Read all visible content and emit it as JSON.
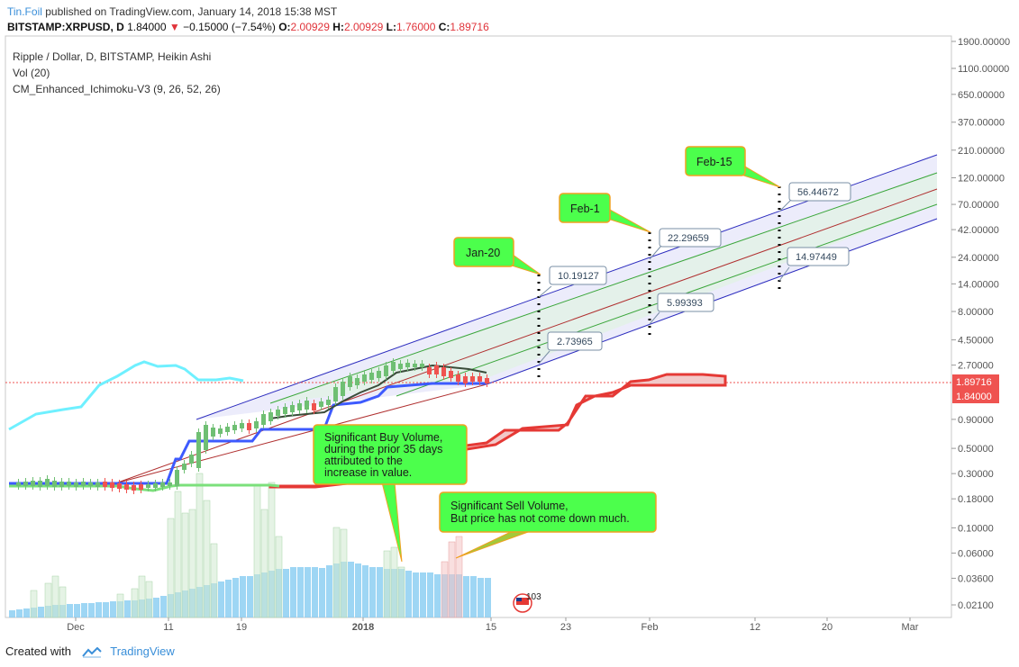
{
  "header": {
    "user": "Tin.Foil",
    "published": "published on TradingView.com, January 14, 2018 15:38 MST",
    "symbol": "BITSTAMP:XRPUSD, D",
    "last": "1.84000",
    "change": "−0.15000 (−7.54%)",
    "o_label": "O:",
    "o": "2.00929",
    "h_label": "H:",
    "h": "2.00929",
    "l_label": "L:",
    "l": "1.76000",
    "c_label": "C:",
    "c": "1.89716"
  },
  "legend": {
    "title": "Ripple / Dollar, D, BITSTAMP, Heikin Ashi",
    "vol": "Vol (20)",
    "indicator": "CM_Enhanced_Ichimoku-V3 (9, 26, 52, 26)"
  },
  "footer": {
    "created": "Created with",
    "brand": "TradingView"
  },
  "chart_data": {
    "type": "line",
    "y_scale": "log",
    "y_axis_ticks": [
      "1900.00000",
      "1100.00000",
      "650.00000",
      "370.00000",
      "210.00000",
      "120.00000",
      "70.00000",
      "42.00000",
      "24.00000",
      "14.00000",
      "8.00000",
      "4.50000",
      "2.70000",
      "0.90000",
      "0.50000",
      "0.30000",
      "0.18000",
      "0.10000",
      "0.06000",
      "0.03600",
      "0.02100"
    ],
    "x_axis_ticks": [
      "Dec",
      "11",
      "19",
      "2018",
      "15",
      "23",
      "Feb",
      "12",
      "20",
      "Mar"
    ],
    "price_tags": [
      {
        "value": "1.89716",
        "color": "#ef5350"
      },
      {
        "value": "1.84000",
        "color": "#ef5350"
      }
    ],
    "projections": [
      {
        "date": "Jan-20",
        "high": "10.19127",
        "low": "2.73965"
      },
      {
        "date": "Feb-1",
        "high": "22.29659",
        "low": "5.99393"
      },
      {
        "date": "Feb-15",
        "high": "56.44672",
        "low": "14.97449"
      }
    ],
    "annotations": [
      "Significant Buy Volume,",
      "during the prior 35 days",
      "attributed to the",
      "increase in value.",
      "Significant Sell Volume,",
      "But price has not come down much."
    ],
    "badge": "103",
    "colors": {
      "channel": "#2d2dbf",
      "channel_fill": "#e6e6fa",
      "mid_line": "#b03030",
      "inner_lines": "#3aa63a",
      "callout_fill": "#4cff4c",
      "candle_up": "#6fbf73",
      "candle_down": "#ef5350",
      "kumo_cyan": "#6ff0ff",
      "kijun_blue": "#3d5afe",
      "volume_blue": "#7ec8f0"
    }
  }
}
